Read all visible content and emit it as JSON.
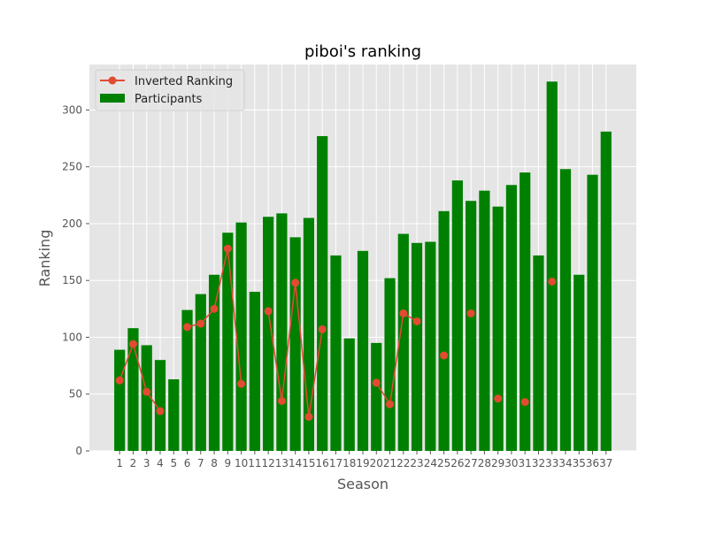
{
  "chart_data": {
    "type": "bar",
    "title": "piboi's ranking",
    "xlabel": "Season",
    "ylabel": "Ranking",
    "ylim": [
      0,
      340
    ],
    "yticks": [
      0,
      50,
      100,
      150,
      200,
      250,
      300
    ],
    "grid": true,
    "legend_placement": "top-left",
    "categories": [
      "1",
      "2",
      "3",
      "4",
      "5",
      "6",
      "7",
      "8",
      "9",
      "10",
      "11",
      "12",
      "13",
      "14",
      "15",
      "16",
      "17",
      "18",
      "19",
      "20",
      "21",
      "22",
      "23",
      "24",
      "25",
      "26",
      "27",
      "28",
      "29",
      "30",
      "31",
      "32",
      "33",
      "34",
      "35",
      "36",
      "37"
    ],
    "series": [
      {
        "name": "Participants",
        "type": "bar",
        "color": "#008000",
        "values": [
          89,
          108,
          93,
          80,
          63,
          124,
          138,
          155,
          192,
          201,
          140,
          206,
          209,
          188,
          205,
          277,
          172,
          99,
          176,
          95,
          152,
          191,
          183,
          184,
          211,
          238,
          220,
          229,
          215,
          234,
          245,
          172,
          325,
          248,
          155,
          243,
          281
        ]
      },
      {
        "name": "Inverted Ranking",
        "type": "line",
        "color": "#E24A33",
        "values": [
          62,
          94,
          52,
          35,
          null,
          109,
          112,
          125,
          178,
          59,
          null,
          123,
          44,
          148,
          30,
          107,
          null,
          null,
          null,
          60,
          41,
          121,
          114,
          null,
          84,
          null,
          121,
          null,
          46,
          null,
          43,
          null,
          149,
          null,
          null,
          null,
          null
        ]
      }
    ]
  }
}
